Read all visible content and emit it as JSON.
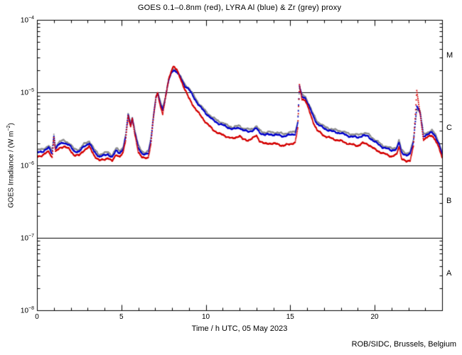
{
  "footer": "ROB/SIDC, Brussels, Belgium",
  "chart_data": {
    "type": "scatter",
    "title": "GOES 0.1–0.8nm (red), LYRA Al (blue) & Zr (grey) proxy",
    "xlabel": "Time / h UTC, 05 May 2023",
    "ylabel_pre": "GOES Irradiance / (W m",
    "ylabel_sup": "−2",
    "ylabel_post": ")",
    "xlim": [
      0,
      24
    ],
    "ylim": [
      1e-08,
      0.0001
    ],
    "y_scale": "log",
    "grid": "off",
    "legend_position": "in-title",
    "x_major_ticks": [
      0,
      5,
      10,
      15,
      20
    ],
    "x_minor_step": 1,
    "y_tick_labels": [
      {
        "base": "10",
        "exp": "−4",
        "value": 0.0001
      },
      {
        "base": "10",
        "exp": "−5",
        "value": 1e-05
      },
      {
        "base": "10",
        "exp": "−6",
        "value": 1e-06
      },
      {
        "base": "10",
        "exp": "−7",
        "value": 1e-07
      },
      {
        "base": "10",
        "exp": "−8",
        "value": 1e-08
      }
    ],
    "hlines": [
      1e-05,
      1e-06,
      1e-07
    ],
    "flare_classes": [
      {
        "label": "M",
        "value": 3.16e-05
      },
      {
        "label": "C",
        "value": 3.16e-06
      },
      {
        "label": "B",
        "value": 3.16e-07
      },
      {
        "label": "A",
        "value": 3.16e-08
      }
    ],
    "hours": [
      0.0,
      0.35,
      0.7,
      0.9,
      1.0,
      1.1,
      1.35,
      1.6,
      1.9,
      2.2,
      2.5,
      2.8,
      3.1,
      3.4,
      3.7,
      4.0,
      4.2,
      4.45,
      4.7,
      4.9,
      5.1,
      5.25,
      5.4,
      5.55,
      5.65,
      5.8,
      6.0,
      6.2,
      6.4,
      6.6,
      6.75,
      6.9,
      7.05,
      7.15,
      7.3,
      7.45,
      7.6,
      7.8,
      8.0,
      8.1,
      8.3,
      8.5,
      8.75,
      9.0,
      9.3,
      9.6,
      10.0,
      10.4,
      10.8,
      11.2,
      11.6,
      12.0,
      12.2,
      12.5,
      12.8,
      13.0,
      13.2,
      13.5,
      13.8,
      14.2,
      14.6,
      15.0,
      15.3,
      15.45,
      15.55,
      15.7,
      15.9,
      16.1,
      16.35,
      16.6,
      17.0,
      17.5,
      18.0,
      18.5,
      19.0,
      19.3,
      19.6,
      20.0,
      20.5,
      21.0,
      21.3,
      21.45,
      21.6,
      21.9,
      22.1,
      22.3,
      22.5,
      22.7,
      22.9,
      23.1,
      23.4,
      23.6,
      23.8,
      24.0
    ],
    "series": [
      {
        "name": "LYRA Zr proxy (grey)",
        "color": "#8f8f8f",
        "values": [
          1.6e-06,
          1.66e-06,
          1.84e-06,
          1.56e-06,
          2.65e-06,
          1.82e-06,
          2.1e-06,
          2.2e-06,
          2e-06,
          1.67e-06,
          1.63e-06,
          1.96e-06,
          2.15e-06,
          1.63e-06,
          1.39e-06,
          1.46e-06,
          1.52e-06,
          1.36e-06,
          1.7e-06,
          1.57e-06,
          1.76e-06,
          2.55e-06,
          5.1e-06,
          3.8e-06,
          4.6e-06,
          3e-06,
          1.87e-06,
          1.57e-06,
          1.48e-06,
          1.55e-06,
          2.35e-06,
          4.9e-06,
          8.8e-06,
          9.9e-06,
          7.5e-06,
          6.1e-06,
          8.6e-06,
          1.5e-05,
          2e-05,
          2.1e-05,
          1.95e-05,
          1.65e-05,
          1.3e-05,
          1.15e-05,
          9e-06,
          7e-06,
          5.5e-06,
          4.5e-06,
          4e-06,
          3.6e-06,
          3.3e-06,
          3.5e-06,
          3.2e-06,
          3.1e-06,
          3.2e-06,
          3.4e-06,
          3e-06,
          2.8e-06,
          2.85e-06,
          2.8e-06,
          2.7e-06,
          2.8e-06,
          2.9e-06,
          4e-06,
          1.15e-05,
          9.2e-06,
          8.8e-06,
          7e-06,
          5.1e-06,
          4e-06,
          3.4e-06,
          3.1e-06,
          2.95e-06,
          2.7e-06,
          2.6e-06,
          2.75e-06,
          2.7e-06,
          2.25e-06,
          1.85e-06,
          1.7e-06,
          1.75e-06,
          2.2e-06,
          1.6e-06,
          1.45e-06,
          1.5e-06,
          2.2e-06,
          6e-06,
          5.5e-06,
          2.65e-06,
          2.8e-06,
          3e-06,
          2.65e-06,
          2.1e-06,
          1.5e-06
        ]
      },
      {
        "name": "LYRA Al proxy (blue)",
        "color": "#0000cc",
        "values": [
          1.48e-06,
          1.55e-06,
          1.72e-06,
          1.45e-06,
          2.5e-06,
          1.7e-06,
          1.95e-06,
          2.05e-06,
          1.88e-06,
          1.56e-06,
          1.52e-06,
          1.83e-06,
          2e-06,
          1.52e-06,
          1.3e-06,
          1.36e-06,
          1.42e-06,
          1.27e-06,
          1.59e-06,
          1.47e-06,
          1.64e-06,
          2.4e-06,
          4.9e-06,
          3.6e-06,
          4.4e-06,
          2.8e-06,
          1.75e-06,
          1.47e-06,
          1.38e-06,
          1.45e-06,
          2.2e-06,
          4.7e-06,
          8.5e-06,
          9.6e-06,
          7.2e-06,
          5.8e-06,
          8.3e-06,
          1.45e-05,
          1.95e-05,
          2.05e-05,
          1.9e-05,
          1.6e-05,
          1.25e-05,
          1.1e-05,
          8.5e-06,
          6.6e-06,
          5.2e-06,
          4.2e-06,
          3.7e-06,
          3.4e-06,
          3.1e-06,
          3.3e-06,
          3e-06,
          2.9e-06,
          3e-06,
          3.2e-06,
          2.8e-06,
          2.6e-06,
          2.65e-06,
          2.6e-06,
          2.5e-06,
          2.6e-06,
          2.7e-06,
          3.8e-06,
          1.2e-05,
          8.8e-06,
          8.4e-06,
          6.6e-06,
          4.8e-06,
          3.7e-06,
          3.2e-06,
          2.9e-06,
          2.75e-06,
          2.5e-06,
          2.4e-06,
          2.55e-06,
          2.5e-06,
          2.1e-06,
          1.75e-06,
          1.6e-06,
          1.65e-06,
          2.05e-06,
          1.5e-06,
          1.35e-06,
          1.4e-06,
          2.1e-06,
          6.5e-06,
          5.2e-06,
          2.5e-06,
          2.65e-06,
          2.8e-06,
          2.5e-06,
          2e-06,
          1.4e-06
        ]
      },
      {
        "name": "GOES 0.1-0.8nm (red)",
        "color": "#d40000",
        "values": [
          1.31e-06,
          1.37e-06,
          1.54e-06,
          1.28e-06,
          2.4e-06,
          1.51e-06,
          1.72e-06,
          1.82e-06,
          1.66e-06,
          1.38e-06,
          1.35e-06,
          1.62e-06,
          1.78e-06,
          1.35e-06,
          1.15e-06,
          1.2e-06,
          1.26e-06,
          1.12e-06,
          1.41e-06,
          1.3e-06,
          1.45e-06,
          2.2e-06,
          4.8e-06,
          3.4e-06,
          4.3e-06,
          2.6e-06,
          1.55e-06,
          1.3e-06,
          1.22e-06,
          1.28e-06,
          2e-06,
          4.5e-06,
          8.3e-06,
          9.8e-06,
          6.7e-06,
          5.1e-06,
          8e-06,
          1.5e-05,
          2.15e-05,
          2.3e-05,
          2e-05,
          1.55e-05,
          1.12e-05,
          8.3e-06,
          6.4e-06,
          5.1e-06,
          3.9e-06,
          3.1e-06,
          2.7e-06,
          2.5e-06,
          2.3e-06,
          2.55e-06,
          2.25e-06,
          2.2e-06,
          2.35e-06,
          2.55e-06,
          2.15e-06,
          1.95e-06,
          2e-06,
          1.95e-06,
          1.85e-06,
          1.95e-06,
          2.05e-06,
          3.2e-06,
          1.25e-05,
          8.2e-06,
          7.8e-06,
          5.8e-06,
          4e-06,
          3e-06,
          2.55e-06,
          2.3e-06,
          2.15e-06,
          1.95e-06,
          1.85e-06,
          2e-06,
          1.95e-06,
          1.65e-06,
          1.45e-06,
          1.32e-06,
          1.38e-06,
          1.8e-06,
          1.25e-06,
          1.1e-06,
          1.15e-06,
          1.85e-06,
          1.03e-05,
          5e-06,
          2.25e-06,
          2.4e-06,
          2.55e-06,
          2.25e-06,
          1.75e-06,
          1.25e-06
        ]
      }
    ]
  }
}
